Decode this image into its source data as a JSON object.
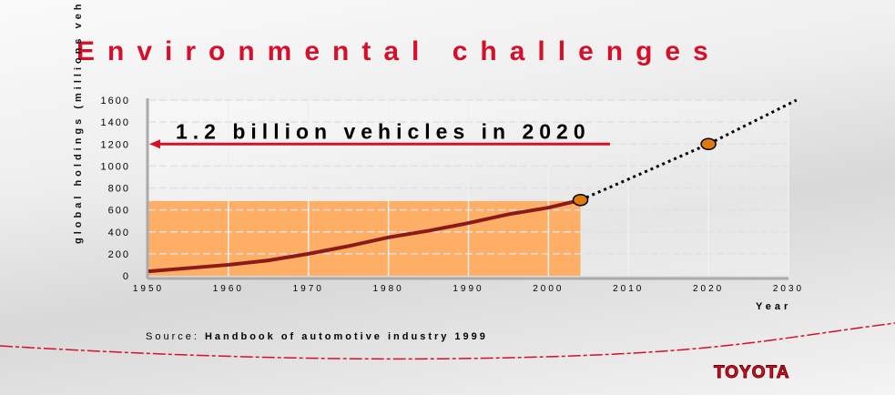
{
  "title": "Environmental challenges",
  "source_label": "Source:",
  "source_text": "Handbook of automotive industry 1999",
  "logo": "TOYOTA",
  "chart_data": {
    "type": "line",
    "title": "Environmental challenges",
    "xlabel": "Year",
    "ylabel": "global holdings (millions vehicles)",
    "annotation": "1.2 billion vehicles in 2020",
    "xlim": [
      1950,
      2030
    ],
    "ylim": [
      0,
      1600
    ],
    "xticks": [
      1950,
      1960,
      1970,
      1980,
      1990,
      2000,
      2010,
      2020,
      2030
    ],
    "yticks": [
      0,
      200,
      400,
      600,
      800,
      1000,
      1200,
      1400,
      1600
    ],
    "grid": true,
    "series": [
      {
        "name": "historical",
        "style": "solid",
        "color": "#8b1a1a",
        "x": [
          1950,
          1955,
          1960,
          1965,
          1970,
          1975,
          1980,
          1985,
          1990,
          1995,
          2000,
          2004
        ],
        "y": [
          40,
          70,
          100,
          140,
          200,
          270,
          350,
          410,
          480,
          560,
          620,
          690
        ]
      },
      {
        "name": "projection",
        "style": "dotted",
        "color": "#000000",
        "x": [
          2004,
          2010,
          2020,
          2031
        ],
        "y": [
          690,
          880,
          1200,
          1600
        ]
      }
    ],
    "markers": [
      {
        "x": 2004,
        "y": 690
      },
      {
        "x": 2020,
        "y": 1200
      }
    ],
    "highlight_range": {
      "x": [
        1950,
        2004
      ],
      "y": [
        0,
        680
      ]
    },
    "colors": {
      "accent": "#d4102a",
      "fill": "#ffae66",
      "marker": "#e07a10"
    }
  }
}
